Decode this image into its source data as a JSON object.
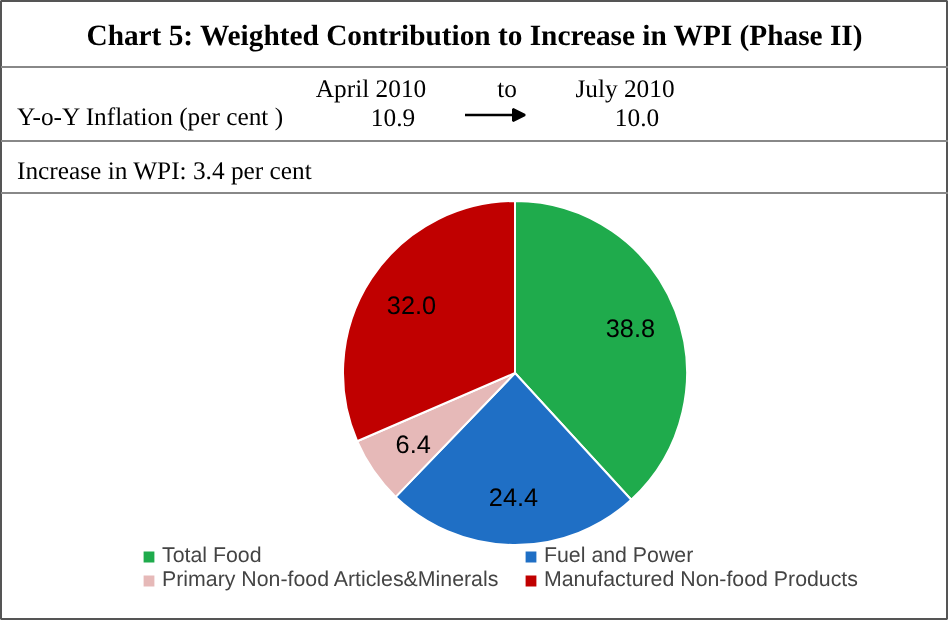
{
  "chart_data": {
    "type": "pie",
    "title": "Chart 5: Weighted Contribution to Increase in WPI (Phase II)",
    "annotations": [
      "April 2010",
      "to",
      "July 2010",
      "Y-o-Y Inflation (per cent )",
      "10.9",
      "10.0",
      "Increase in WPI: 3.4 per cent"
    ],
    "categories": [
      "Total Food",
      "Fuel and Power",
      "Primary Non-food Articles&Minerals",
      "Manufactured Non-food Products"
    ],
    "values": [
      38.8,
      24.4,
      6.4,
      32.0
    ],
    "colors": [
      "#1fab4c",
      "#1f6fc5",
      "#e6b9b8",
      "#c00000"
    ],
    "value_labels": [
      "38.8",
      "24.4",
      "6.4",
      "32.0"
    ],
    "legend": "bottom"
  }
}
